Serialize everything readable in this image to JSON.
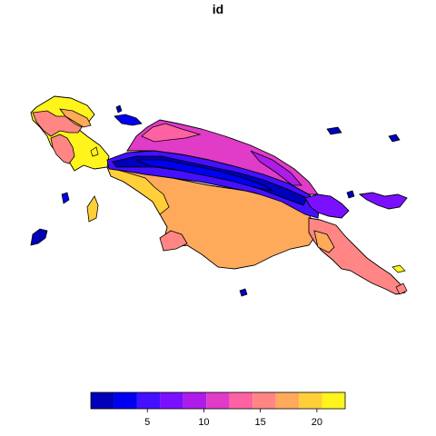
{
  "title": "id",
  "legend": {
    "colors": [
      "#0000B8",
      "#0000F0",
      "#4410FF",
      "#7A10FF",
      "#AE1CE8",
      "#E03CC8",
      "#FF62A2",
      "#FF8684",
      "#FFAA5A",
      "#FFCF3A",
      "#FFF41C"
    ],
    "ticks": [
      5,
      10,
      15,
      20
    ],
    "range": [
      0,
      22.5
    ]
  },
  "regions": [
    {
      "id": "fill-yellow",
      "class_value": 21
    },
    {
      "id": "fill-gold",
      "class_value": 19
    },
    {
      "id": "fill-orange",
      "class_value": 17
    },
    {
      "id": "fill-salmon",
      "class_value": 15
    },
    {
      "id": "fill-pink",
      "class_value": 13
    },
    {
      "id": "fill-magenta",
      "class_value": 11
    },
    {
      "id": "fill-violet",
      "class_value": 9
    },
    {
      "id": "fill-purple",
      "class_value": 7
    },
    {
      "id": "fill-indigo",
      "class_value": 5
    },
    {
      "id": "fill-blue",
      "class_value": 3
    },
    {
      "id": "fill-navy",
      "class_value": 1
    }
  ]
}
